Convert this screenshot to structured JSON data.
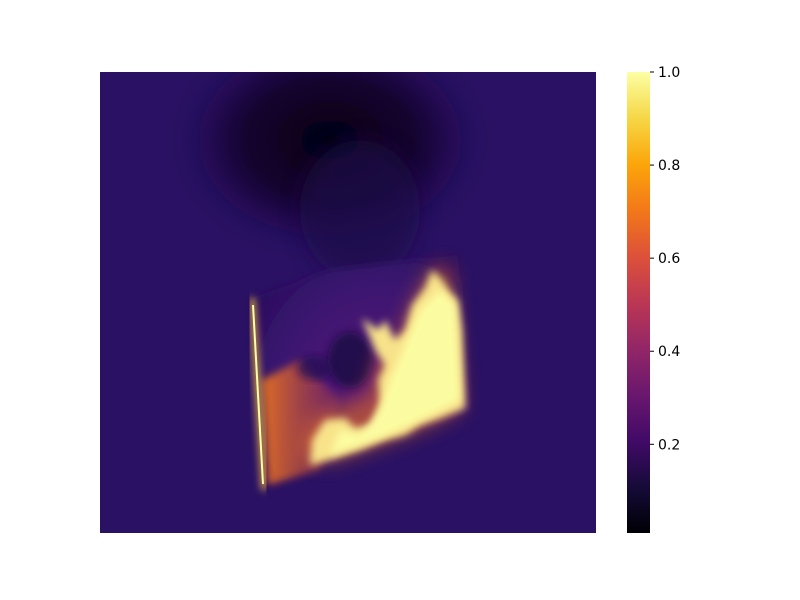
{
  "chart_data": {
    "type": "heatmap",
    "title": "",
    "xlabel": "",
    "ylabel": "",
    "axes_visible": false,
    "grid": false,
    "colormap": "inferno",
    "colorbar": {
      "location": "right",
      "range": [
        0.0,
        1.0
      ],
      "ticks": [
        {
          "value": 0.2,
          "label": "0.2"
        },
        {
          "value": 0.4,
          "label": "0.4"
        },
        {
          "value": 0.6,
          "label": "0.6"
        },
        {
          "value": 0.8,
          "label": "0.8"
        },
        {
          "value": 1.0,
          "label": "1.0"
        }
      ]
    },
    "background_value": 0.15,
    "regions": [
      {
        "name": "glowing-frame-interior",
        "value": 0.35
      },
      {
        "name": "flame-bright-core",
        "value": 0.95
      },
      {
        "name": "hot-left-edge",
        "value": 0.9
      },
      {
        "name": "dark-smoke-plume",
        "value": 0.04
      }
    ],
    "colors": {
      "inferno_0.0": "#000004",
      "inferno_0.1": "#160b39",
      "inferno_0.2": "#420a68",
      "inferno_0.3": "#6a176e",
      "inferno_0.4": "#932667",
      "inferno_0.5": "#bc3754",
      "inferno_0.6": "#dd513a",
      "inferno_0.7": "#f37819",
      "inferno_0.8": "#fca50a",
      "inferno_0.9": "#f6d746",
      "inferno_1.0": "#fcffa4"
    }
  }
}
